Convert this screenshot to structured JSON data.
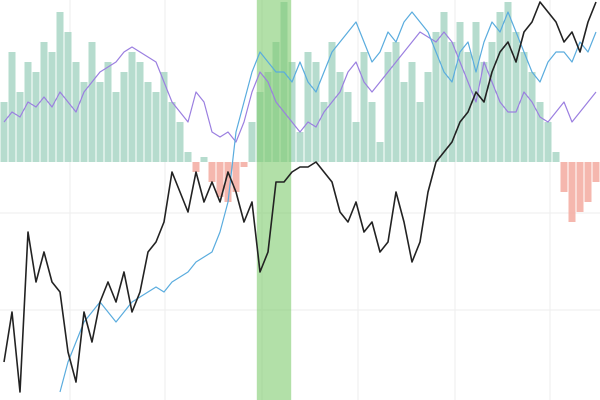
{
  "chart_data": {
    "type": "combo",
    "xlim": [
      -0.5,
      74.5
    ],
    "ylim": [
      -238,
      162
    ],
    "highlight": {
      "range": [
        31.6,
        35.9
      ],
      "color": "#7fcc6e"
    },
    "bars": {
      "color": "#a9d6c6",
      "negative_color": "#f3aaa0",
      "values": [
        60,
        110,
        70,
        100,
        90,
        120,
        110,
        150,
        130,
        100,
        80,
        120,
        80,
        100,
        70,
        90,
        110,
        100,
        80,
        70,
        90,
        60,
        40,
        10,
        -10,
        5,
        -20,
        -35,
        -40,
        -30,
        -5,
        40,
        70,
        90,
        120,
        160,
        100,
        30,
        110,
        100,
        60,
        120,
        90,
        70,
        40,
        110,
        60,
        20,
        110,
        120,
        80,
        100,
        60,
        90,
        130,
        150,
        120,
        140,
        110,
        140,
        100,
        120,
        150,
        160,
        130,
        110,
        90,
        60,
        40,
        10,
        -30,
        -60,
        -50,
        -40,
        -20
      ]
    },
    "series": [
      {
        "color": "#9b7fe0",
        "values": [
          40,
          50,
          45,
          60,
          55,
          65,
          55,
          70,
          60,
          50,
          70,
          80,
          90,
          95,
          100,
          110,
          115,
          110,
          105,
          100,
          80,
          60,
          50,
          40,
          70,
          60,
          30,
          25,
          30,
          20,
          40,
          70,
          90,
          80,
          60,
          50,
          40,
          30,
          40,
          35,
          50,
          60,
          70,
          90,
          100,
          80,
          70,
          80,
          90,
          100,
          110,
          120,
          130,
          125,
          120,
          130,
          120,
          100,
          80,
          60,
          100,
          80,
          60,
          50,
          50,
          70,
          60,
          45,
          40,
          50,
          60,
          40,
          50,
          60,
          70
        ]
      },
      {
        "color": "#5aacde",
        "values": [
          null,
          null,
          null,
          null,
          null,
          null,
          null,
          -230,
          -200,
          -180,
          -160,
          -150,
          -140,
          -150,
          -160,
          -150,
          -140,
          -135,
          -130,
          -125,
          -130,
          -120,
          -115,
          -110,
          -100,
          -95,
          -90,
          -70,
          -40,
          30,
          60,
          90,
          110,
          100,
          90,
          90,
          80,
          100,
          80,
          70,
          90,
          110,
          120,
          130,
          140,
          120,
          100,
          110,
          130,
          120,
          140,
          150,
          140,
          130,
          110,
          90,
          80,
          110,
          120,
          90,
          120,
          140,
          130,
          150,
          130,
          110,
          90,
          80,
          100,
          110,
          110,
          100,
          120,
          110,
          130
        ]
      },
      {
        "color": "#222222",
        "values": [
          -200,
          -150,
          -230,
          -70,
          -120,
          -90,
          -120,
          -130,
          -190,
          -220,
          -150,
          -180,
          -140,
          -120,
          -140,
          -110,
          -150,
          -130,
          -90,
          -80,
          -60,
          -10,
          -30,
          -50,
          -10,
          -40,
          -20,
          -40,
          -10,
          -30,
          -60,
          -40,
          -110,
          -90,
          -20,
          -20,
          -10,
          -5,
          -5,
          0,
          -10,
          -20,
          -50,
          -60,
          -40,
          -70,
          -60,
          -90,
          -80,
          -30,
          -60,
          -100,
          -80,
          -30,
          0,
          10,
          20,
          40,
          50,
          70,
          60,
          90,
          110,
          120,
          100,
          130,
          140,
          160,
          150,
          140,
          120,
          130,
          110,
          140,
          160
        ]
      }
    ]
  }
}
